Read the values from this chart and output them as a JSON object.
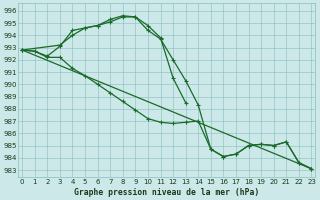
{
  "line1_x": [
    0,
    1,
    2,
    3,
    4,
    5,
    6,
    7,
    8,
    9,
    10,
    11,
    12,
    13
  ],
  "line1_y": [
    992.8,
    992.7,
    992.3,
    993.1,
    994.4,
    994.6,
    994.8,
    995.1,
    995.5,
    995.5,
    994.8,
    993.8,
    990.5,
    988.5
  ],
  "line2_x": [
    0,
    3,
    4,
    5,
    6,
    7,
    8,
    9,
    10,
    11,
    12,
    13,
    14,
    15,
    16,
    17,
    18,
    19,
    20,
    21,
    22,
    23
  ],
  "line2_y": [
    992.8,
    993.2,
    994.0,
    994.6,
    994.8,
    995.3,
    995.6,
    995.5,
    994.4,
    993.7,
    992.0,
    990.3,
    988.3,
    984.7,
    984.1,
    984.3,
    985.0,
    985.1,
    985.0,
    985.3,
    983.6,
    983.1
  ],
  "line3_x": [
    0,
    1,
    2,
    3,
    4,
    5,
    6,
    7,
    8,
    9,
    10,
    11,
    12,
    13,
    14,
    15,
    16,
    17,
    18,
    19,
    20,
    21,
    22,
    23
  ],
  "line3_y": [
    992.8,
    992.7,
    992.2,
    992.2,
    991.3,
    990.7,
    990.0,
    989.3,
    988.6,
    987.9,
    987.2,
    986.9,
    986.8,
    986.9,
    987.0,
    984.7,
    984.1,
    984.3,
    985.0,
    985.1,
    985.0,
    985.3,
    983.6,
    983.1
  ],
  "line4_x": [
    0,
    23
  ],
  "line4_y": [
    992.8,
    983.1
  ],
  "bg_color": "#cce8e8",
  "grid_color": "#89bcbc",
  "line_color": "#1a6b2a",
  "title": "Graphe pression niveau de la mer (hPa)",
  "yticks": [
    996,
    995,
    994,
    993,
    992,
    991,
    990,
    989,
    988,
    987,
    986,
    985,
    984,
    983
  ],
  "ylim": [
    982.4,
    996.6
  ],
  "xlim": [
    -0.3,
    23.3
  ]
}
